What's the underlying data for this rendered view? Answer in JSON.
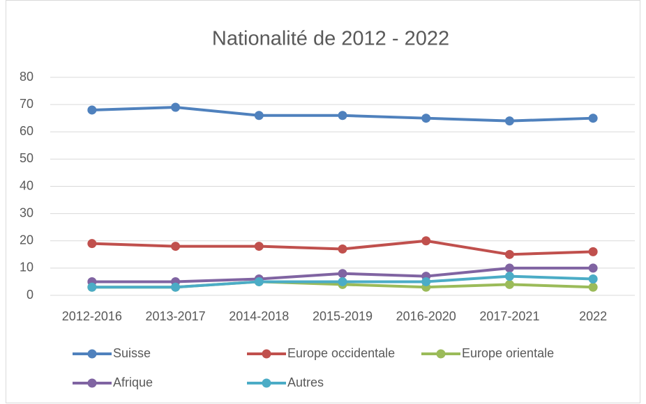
{
  "chart_data": {
    "type": "line",
    "title": "Nationalité de 2012 - 2022",
    "categories": [
      "2012-2016",
      "2013-2017",
      "2014-2018",
      "2015-2019",
      "2016-2020",
      "2017-2021",
      "2022"
    ],
    "series": [
      {
        "name": "Suisse",
        "color": "#4f81bd",
        "values": [
          68,
          69,
          66,
          66,
          65,
          64,
          65
        ]
      },
      {
        "name": "Europe occidentale",
        "color": "#c0504d",
        "values": [
          19,
          18,
          18,
          17,
          20,
          15,
          16
        ]
      },
      {
        "name": "Europe orientale",
        "color": "#9bbb59",
        "values": [
          3,
          3,
          5,
          4,
          3,
          4,
          3
        ]
      },
      {
        "name": "Afrique",
        "color": "#8064a2",
        "values": [
          5,
          5,
          6,
          8,
          7,
          10,
          10
        ]
      },
      {
        "name": "Autres",
        "color": "#4bacc6",
        "values": [
          3,
          3,
          5,
          5,
          5,
          7,
          6
        ]
      }
    ],
    "ylim": [
      0,
      80
    ],
    "yticks": [
      0,
      10,
      20,
      30,
      40,
      50,
      60,
      70,
      80
    ],
    "grid": true,
    "legend": "bottom"
  }
}
